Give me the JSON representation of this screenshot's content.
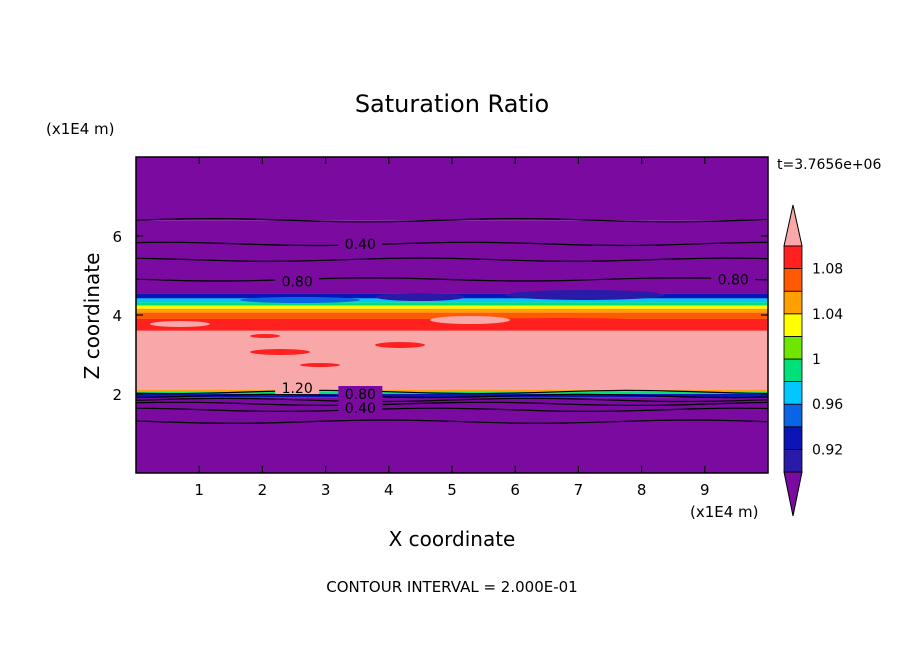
{
  "chart_data": {
    "type": "heatmap",
    "title": "Saturation Ratio",
    "xlabel": "X coordinate",
    "ylabel": "Z coordinate",
    "x_units": "(x1E4 m)",
    "y_units": "(x1E4 m)",
    "xlim": [
      0,
      10
    ],
    "ylim": [
      0,
      8
    ],
    "xticks": [
      1,
      2,
      3,
      4,
      5,
      6,
      7,
      8,
      9
    ],
    "yticks": [
      2,
      4,
      6
    ],
    "time_label": "t=3.7656e+06",
    "footer": "CONTOUR INTERVAL = 2.000E-01",
    "colorbar": {
      "labels": [
        "1.08",
        "1.04",
        "1",
        "0.96",
        "0.92"
      ],
      "label_values": [
        1.08,
        1.04,
        1.0,
        0.96,
        0.92
      ],
      "levels": [
        0.92,
        0.94,
        0.96,
        0.98,
        1.0,
        1.02,
        1.04,
        1.06,
        1.08,
        1.1
      ],
      "colors": [
        "#7a0aa0",
        "#2a1aa8",
        "#0b14b4",
        "#0a64e6",
        "#00c8ff",
        "#00e07a",
        "#6ee600",
        "#ffff00",
        "#ffa000",
        "#ff5a00",
        "#ff2020",
        "#f8a8a8"
      ]
    },
    "bands": [
      {
        "z0": 6.4,
        "z1": 8.0,
        "color": "#7a0aa0"
      },
      {
        "z0": 4.55,
        "z1": 6.4,
        "color": "#7a0aa0"
      },
      {
        "z0": 4.42,
        "z1": 4.55,
        "color": "#0b14b4"
      },
      {
        "z0": 4.32,
        "z1": 4.42,
        "color": "#00c8ff"
      },
      {
        "z0": 4.24,
        "z1": 4.32,
        "color": "#00e07a"
      },
      {
        "z0": 4.16,
        "z1": 4.24,
        "color": "#ffff00"
      },
      {
        "z0": 4.06,
        "z1": 4.16,
        "color": "#ffa000"
      },
      {
        "z0": 3.9,
        "z1": 4.06,
        "color": "#ff5a00"
      },
      {
        "z0": 3.6,
        "z1": 3.9,
        "color": "#ff2020"
      },
      {
        "z0": 2.1,
        "z1": 3.6,
        "color": "#f8a8a8"
      },
      {
        "z0": 2.05,
        "z1": 2.1,
        "color": "#ffa000"
      },
      {
        "z0": 2.0,
        "z1": 2.05,
        "color": "#00e07a"
      },
      {
        "z0": 1.92,
        "z1": 2.0,
        "color": "#0b14b4"
      },
      {
        "z0": 0.0,
        "z1": 1.92,
        "color": "#7a0aa0"
      }
    ],
    "contour_lines_z": [
      6.4,
      5.8,
      5.4,
      4.9,
      2.05,
      1.95,
      1.85,
      1.75,
      1.6,
      1.3
    ],
    "contour_labels": [
      {
        "text": "0.40",
        "x": 3.55,
        "z": 5.8
      },
      {
        "text": "0.80",
        "x": 2.55,
        "z": 4.85
      },
      {
        "text": "0.80",
        "x": 9.45,
        "z": 4.9
      },
      {
        "text": "1.20",
        "x": 2.55,
        "z": 2.15
      },
      {
        "text": "0.80",
        "x": 3.55,
        "z": 2.0
      },
      {
        "text": "0.40",
        "x": 3.55,
        "z": 1.65
      }
    ]
  }
}
